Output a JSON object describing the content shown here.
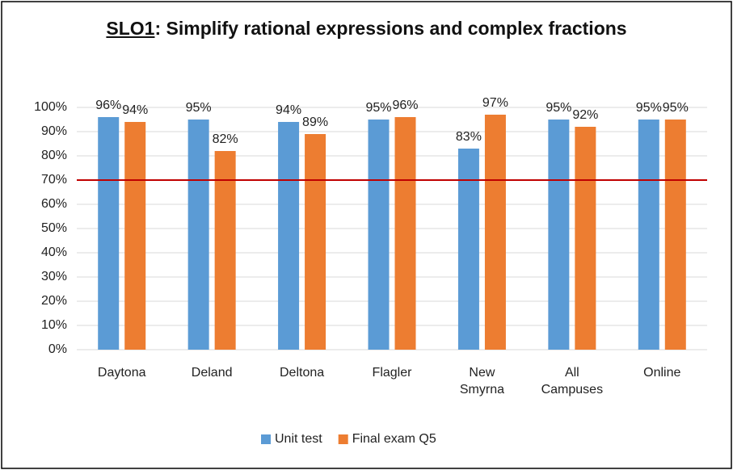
{
  "chart_data": {
    "type": "bar",
    "title": [
      "SLO1",
      ": Simplify rational expressions and complex fractions"
    ],
    "categories": [
      "Daytona",
      "Deland",
      "Deltona",
      "Flagler",
      "New Smyrna",
      "All Campuses",
      "Online"
    ],
    "series": [
      {
        "name": "Unit test",
        "color": "#5b9bd5",
        "values": [
          96,
          95,
          94,
          95,
          83,
          95,
          95
        ],
        "value_labels": [
          "96%",
          "95%",
          "94%",
          "95%",
          "83%",
          "95%",
          "95%"
        ]
      },
      {
        "name": "Final exam Q5",
        "color": "#ed7d31",
        "values": [
          94,
          82,
          89,
          96,
          97,
          92,
          95
        ],
        "value_labels": [
          "94%",
          "82%",
          "89%",
          "96%",
          "97%",
          "92%",
          "95%"
        ]
      }
    ],
    "ylim": [
      0,
      100
    ],
    "yticks": [
      {
        "value": 0,
        "label": "0%"
      },
      {
        "value": 10,
        "label": "10%"
      },
      {
        "value": 20,
        "label": "20%"
      },
      {
        "value": 30,
        "label": "30%"
      },
      {
        "value": 40,
        "label": "40%"
      },
      {
        "value": 50,
        "label": "50%"
      },
      {
        "value": 60,
        "label": "60%"
      },
      {
        "value": 70,
        "label": "70%"
      },
      {
        "value": 80,
        "label": "80%"
      },
      {
        "value": 90,
        "label": "90%"
      },
      {
        "value": 100,
        "label": "100%"
      }
    ],
    "grid": true,
    "reference_line": {
      "value": 70,
      "color": "#c00000"
    },
    "legend": "bottom"
  }
}
